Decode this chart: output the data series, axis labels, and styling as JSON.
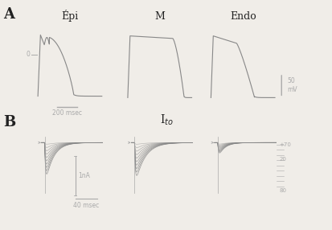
{
  "background_color": "#f0ede8",
  "panel_A_label": "A",
  "panel_B_label": "B",
  "col_labels": [
    "Épi",
    "M",
    "Endo"
  ],
  "scale_bar_A_voltage": "50\nmV",
  "scale_bar_A_time": "200 msec",
  "scale_bar_B_current": "1nA",
  "scale_bar_B_time": "40 msec",
  "Ito_label": "I$_{to}$",
  "voltage_labels_right": [
    "+70",
    "20",
    "80"
  ],
  "line_color": "#888888",
  "scale_color": "#aaaaaa",
  "label_color": "#222222",
  "fig_bg": "#f0ede8",
  "ax_bg": "#f8f6f2"
}
